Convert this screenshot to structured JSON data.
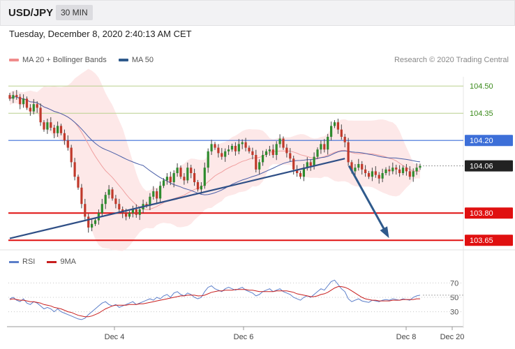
{
  "header": {
    "pair": "USD/JPY",
    "timeframe": "30 MIN",
    "datetime": "Tuesday, December 8, 2020 2:40:13 AM CET"
  },
  "legend": {
    "items": [
      {
        "label": "MA 20 + Bollinger Bands",
        "color": "#f08c8c"
      },
      {
        "label": "MA 50",
        "color": "#2f5a8c"
      }
    ],
    "credit": "Research © 2020 Trading Central"
  },
  "rsi_legend": {
    "items": [
      {
        "label": "RSI",
        "color": "#5b7ec9"
      },
      {
        "label": "9MA",
        "color": "#c81e1e"
      }
    ]
  },
  "chart_data": [
    {
      "type": "candlestick",
      "title": "USD/JPY",
      "ylim": [
        103.62,
        104.57
      ],
      "x_ticks": [
        "Dec 4",
        "Dec 6",
        "Dec 8",
        "Dec 20"
      ],
      "levels": [
        {
          "label": "104.50",
          "value": 104.5,
          "style": "resistance-thin",
          "color": "#3a8a1a"
        },
        {
          "label": "104.35",
          "value": 104.35,
          "style": "resistance-thin",
          "color": "#3a8a1a"
        },
        {
          "label": "104.20",
          "value": 104.2,
          "style": "pivot",
          "color": "#3d6fd8"
        },
        {
          "label": "104.06",
          "value": 104.06,
          "style": "last-price",
          "color": "#222222"
        },
        {
          "label": "103.80",
          "value": 103.8,
          "style": "support",
          "color": "#e01010"
        },
        {
          "label": "103.65",
          "value": 103.65,
          "style": "support",
          "color": "#e01010"
        }
      ],
      "trendline": {
        "from": {
          "bar": 0,
          "value": 103.66
        },
        "to": {
          "bar": 98,
          "value": 104.1
        }
      },
      "forecast_arrow": {
        "from": {
          "bar": 98,
          "value": 104.06
        },
        "to": {
          "bar": 104,
          "value": 103.66
        }
      },
      "closes": [
        104.43,
        104.45,
        104.44,
        104.4,
        104.43,
        104.38,
        104.36,
        104.4,
        104.38,
        104.3,
        104.26,
        104.3,
        104.27,
        104.24,
        104.28,
        104.24,
        104.2,
        104.16,
        104.08,
        104.0,
        103.94,
        103.85,
        103.78,
        103.72,
        103.74,
        103.76,
        103.8,
        103.85,
        103.9,
        103.93,
        103.88,
        103.85,
        103.82,
        103.8,
        103.78,
        103.8,
        103.82,
        103.79,
        103.82,
        103.85,
        103.84,
        103.89,
        103.92,
        103.88,
        103.95,
        103.98,
        104.0,
        103.97,
        104.02,
        104.05,
        104.0,
        103.98,
        104.05,
        104.02,
        103.97,
        103.93,
        103.95,
        104.05,
        104.14,
        104.18,
        104.16,
        104.13,
        104.11,
        104.14,
        104.15,
        104.17,
        104.14,
        104.18,
        104.19,
        104.16,
        104.14,
        104.12,
        104.04,
        104.08,
        104.12,
        104.14,
        104.15,
        104.12,
        104.18,
        104.21,
        104.16,
        104.13,
        104.1,
        104.04,
        104.02,
        104.0,
        104.05,
        104.08,
        104.06,
        104.11,
        104.15,
        104.18,
        104.15,
        104.22,
        104.28,
        104.3,
        104.26,
        104.22,
        104.19,
        104.08,
        104.03,
        104.05,
        104.07,
        104.04,
        104.02,
        104.0,
        104.03,
        104.01,
        103.99,
        104.02,
        104.04,
        104.03,
        104.05,
        104.04,
        104.02,
        104.05,
        104.03,
        104.0,
        104.03,
        104.05,
        104.06
      ]
    },
    {
      "type": "line",
      "title": "RSI",
      "ylim": [
        15,
        85
      ],
      "y_ticks": [
        30,
        50,
        70
      ],
      "series": [
        {
          "name": "RSI",
          "values": [
            48,
            50,
            46,
            44,
            48,
            42,
            40,
            44,
            42,
            38,
            34,
            36,
            34,
            30,
            34,
            30,
            28,
            26,
            24,
            22,
            20,
            19,
            21,
            26,
            30,
            34,
            38,
            42,
            44,
            40,
            38,
            40,
            36,
            38,
            40,
            42,
            44,
            40,
            42,
            44,
            46,
            48,
            46,
            50,
            48,
            52,
            54,
            50,
            56,
            58,
            54,
            52,
            56,
            54,
            50,
            48,
            50,
            58,
            64,
            66,
            62,
            60,
            58,
            62,
            64,
            62,
            60,
            62,
            64,
            60,
            58,
            56,
            52,
            54,
            58,
            60,
            62,
            58,
            60,
            62,
            58,
            56,
            54,
            50,
            48,
            46,
            50,
            52,
            50,
            54,
            58,
            62,
            60,
            66,
            72,
            74,
            68,
            62,
            58,
            48,
            44,
            46,
            48,
            45,
            44,
            43,
            46,
            45,
            44,
            46,
            47,
            46,
            48,
            47,
            46,
            48,
            47,
            46,
            50,
            52,
            53
          ]
        },
        {
          "name": "9MA",
          "values": [
            47,
            48,
            47,
            46,
            46,
            45,
            44,
            44,
            43,
            42,
            40,
            39,
            38,
            36,
            35,
            34,
            32,
            30,
            29,
            27,
            25,
            24,
            23,
            23,
            24,
            26,
            28,
            31,
            34,
            36,
            38,
            39,
            39,
            39,
            39,
            40,
            40,
            40,
            41,
            41,
            42,
            43,
            44,
            45,
            46,
            47,
            48,
            49,
            50,
            51,
            52,
            52,
            53,
            53,
            53,
            52,
            52,
            53,
            55,
            57,
            58,
            59,
            59,
            60,
            60,
            60,
            61,
            61,
            61,
            61,
            60,
            60,
            59,
            58,
            58,
            58,
            58,
            58,
            59,
            59,
            59,
            59,
            58,
            57,
            55,
            54,
            53,
            52,
            51,
            51,
            52,
            54,
            55,
            57,
            60,
            63,
            65,
            65,
            64,
            62,
            59,
            56,
            53,
            50,
            48,
            47,
            46,
            46,
            45,
            45,
            45,
            45,
            46,
            46,
            46,
            47,
            47,
            47,
            47,
            48,
            48
          ]
        }
      ]
    }
  ]
}
